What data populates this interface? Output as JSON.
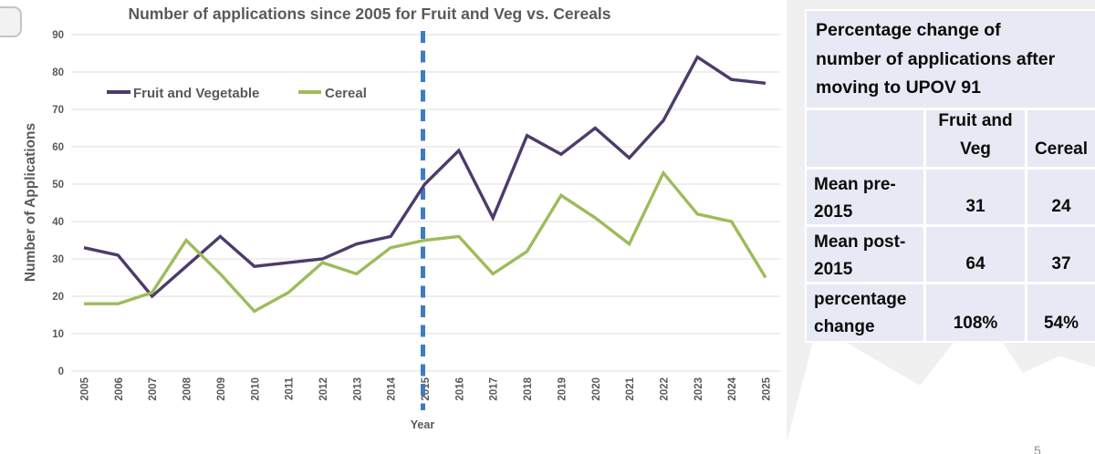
{
  "page": {
    "page_number": "5"
  },
  "chart_data": {
    "type": "line",
    "title": "Number of applications since 2005 for Fruit and Veg vs. Cereals",
    "xlabel": "Year",
    "ylabel": "Number of Applications",
    "ylim": [
      0,
      90
    ],
    "ytick_step": 10,
    "grid": true,
    "legend_position": "top-left-inside",
    "categories": [
      2005,
      2006,
      2007,
      2008,
      2009,
      2010,
      2011,
      2012,
      2013,
      2014,
      2015,
      2016,
      2017,
      2018,
      2019,
      2020,
      2021,
      2022,
      2023,
      2024,
      2025
    ],
    "series": [
      {
        "name": "Fruit and Vegetable",
        "color": "#4C3B6B",
        "values": [
          33,
          31,
          20,
          28,
          36,
          28,
          29,
          30,
          34,
          36,
          50,
          59,
          41,
          63,
          58,
          65,
          57,
          67,
          84,
          78,
          77
        ]
      },
      {
        "name": "Cereal",
        "color": "#9DBC5A",
        "values": [
          18,
          18,
          21,
          35,
          26,
          16,
          21,
          29,
          26,
          33,
          35,
          36,
          26,
          32,
          47,
          41,
          34,
          53,
          42,
          40,
          25
        ]
      }
    ],
    "annotation_line": {
      "x": 2015,
      "color": "#3E7CC0",
      "style": "dashed"
    }
  },
  "table": {
    "title_lines": [
      "Percentage change of",
      "number of applications after",
      "moving to UPOV 91"
    ],
    "columns": [
      "Fruit and Veg",
      "Cereal"
    ],
    "rows": [
      {
        "label": "Mean pre-2015",
        "fruit_and_veg": "31",
        "cereal": "24"
      },
      {
        "label": "Mean post-2015",
        "fruit_and_veg": "64",
        "cereal": "37"
      },
      {
        "label": "percentage change",
        "fruit_and_veg": "108%",
        "cereal": "54%"
      }
    ],
    "cell_bg": "#E7EAF4"
  }
}
